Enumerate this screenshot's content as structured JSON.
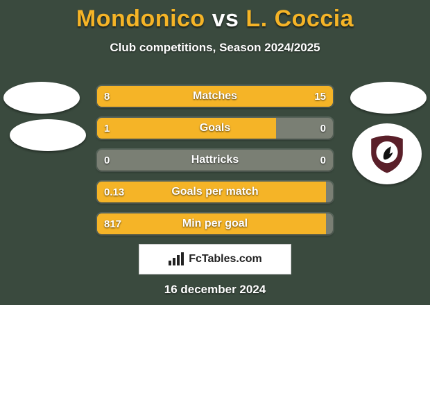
{
  "card": {
    "background_color": "#3a4a3e",
    "title_parts": {
      "left": "Mondonico",
      "vs": " vs ",
      "right": "L. Coccia"
    },
    "title_color_left": "#f5b427",
    "title_color_vs": "#ffffff",
    "title_color_right": "#f5b427",
    "title_fontsize": 34,
    "subtitle": "Club competitions, Season 2024/2025",
    "subtitle_fontsize": 17,
    "date": "16 december 2024",
    "brand": "FcTables.com"
  },
  "club_badge": {
    "outer_color": "#5a1f29",
    "inner_color": "#ffffff"
  },
  "bars_style": {
    "bg_color": "#8a8f84",
    "left_color": "#f5b427",
    "right_color": "#f5b427",
    "track_color": "#7a7f74",
    "height": 30,
    "gap": 16,
    "label_fontsize": 16,
    "value_fontsize": 15
  },
  "stats": [
    {
      "label": "Matches",
      "left_val": "8",
      "right_val": "15",
      "left_pct": 35,
      "right_pct": 65
    },
    {
      "label": "Goals",
      "left_val": "1",
      "right_val": "0",
      "left_pct": 76,
      "right_pct": 0
    },
    {
      "label": "Hattricks",
      "left_val": "0",
      "right_val": "0",
      "left_pct": 0,
      "right_pct": 0
    },
    {
      "label": "Goals per match",
      "left_val": "0.13",
      "right_val": "",
      "left_pct": 97,
      "right_pct": 0
    },
    {
      "label": "Min per goal",
      "left_val": "817",
      "right_val": "",
      "left_pct": 97,
      "right_pct": 0
    }
  ]
}
